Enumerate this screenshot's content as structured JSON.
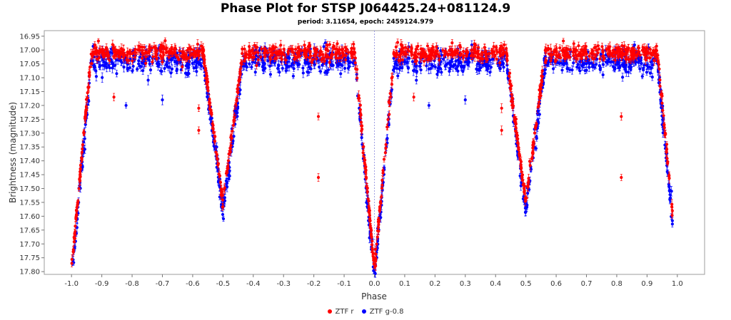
{
  "chart_data": {
    "type": "scatter",
    "title": "Phase Plot for STSP J064425.24+081124.9",
    "subtitle": "period: 3.11654, epoch: 2459124.979",
    "xlabel": "Phase",
    "ylabel": "Brightness (magnitude)",
    "xlim": [
      -1.09,
      1.09
    ],
    "ylim": [
      16.93,
      17.81
    ],
    "y_inverted": true,
    "grid": false,
    "legend_position": "bottom",
    "x_ticks": [
      "-1.0",
      "-0.9",
      "-0.8",
      "-0.7",
      "-0.6",
      "-0.5",
      "-0.4",
      "-0.3",
      "-0.2",
      "-0.1",
      "0.0",
      "0.1",
      "0.2",
      "0.3",
      "0.4",
      "0.5",
      "0.6",
      "0.7",
      "0.8",
      "0.9",
      "1.0"
    ],
    "y_ticks": [
      "16.95",
      "17.00",
      "17.05",
      "17.10",
      "17.15",
      "17.20",
      "17.25",
      "17.30",
      "17.35",
      "17.40",
      "17.45",
      "17.50",
      "17.55",
      "17.60",
      "17.65",
      "17.70",
      "17.75",
      "17.80"
    ],
    "reference_line_x": 0.0,
    "model": {
      "baseline_r": 17.01,
      "baseline_g": 17.04,
      "primary_eclipse": {
        "phase": 0.0,
        "depth_mag": 0.78,
        "half_width": 0.065
      },
      "secondary_eclipse": {
        "phase": 0.5,
        "depth_mag": 0.54,
        "half_width": 0.065
      },
      "points_per_series": 1100
    },
    "series": [
      {
        "name": "ZTF r",
        "color": "#ff0000"
      },
      {
        "name": "ZTF g-0.8",
        "color": "#0000ff"
      }
    ],
    "outliers": [
      {
        "series": "ZTF r",
        "x": -0.86,
        "y": 17.17
      },
      {
        "series": "ZTF r",
        "x": -0.58,
        "y": 17.21
      },
      {
        "series": "ZTF r",
        "x": -0.58,
        "y": 17.29
      },
      {
        "series": "ZTF r",
        "x": -0.185,
        "y": 17.24
      },
      {
        "series": "ZTF r",
        "x": -0.185,
        "y": 17.46
      },
      {
        "series": "ZTF r",
        "x": 0.13,
        "y": 17.17
      },
      {
        "series": "ZTF r",
        "x": 0.42,
        "y": 17.21
      },
      {
        "series": "ZTF r",
        "x": 0.42,
        "y": 17.29
      },
      {
        "series": "ZTF r",
        "x": 0.815,
        "y": 17.24
      },
      {
        "series": "ZTF r",
        "x": 0.815,
        "y": 17.46
      },
      {
        "series": "ZTF g-0.8",
        "x": -0.82,
        "y": 17.2
      },
      {
        "series": "ZTF g-0.8",
        "x": -0.7,
        "y": 17.18
      },
      {
        "series": "ZTF g-0.8",
        "x": -0.46,
        "y": 17.22
      },
      {
        "series": "ZTF g-0.8",
        "x": 0.18,
        "y": 17.2
      },
      {
        "series": "ZTF g-0.8",
        "x": 0.3,
        "y": 17.18
      },
      {
        "series": "ZTF g-0.8",
        "x": 0.54,
        "y": 17.22
      }
    ]
  }
}
